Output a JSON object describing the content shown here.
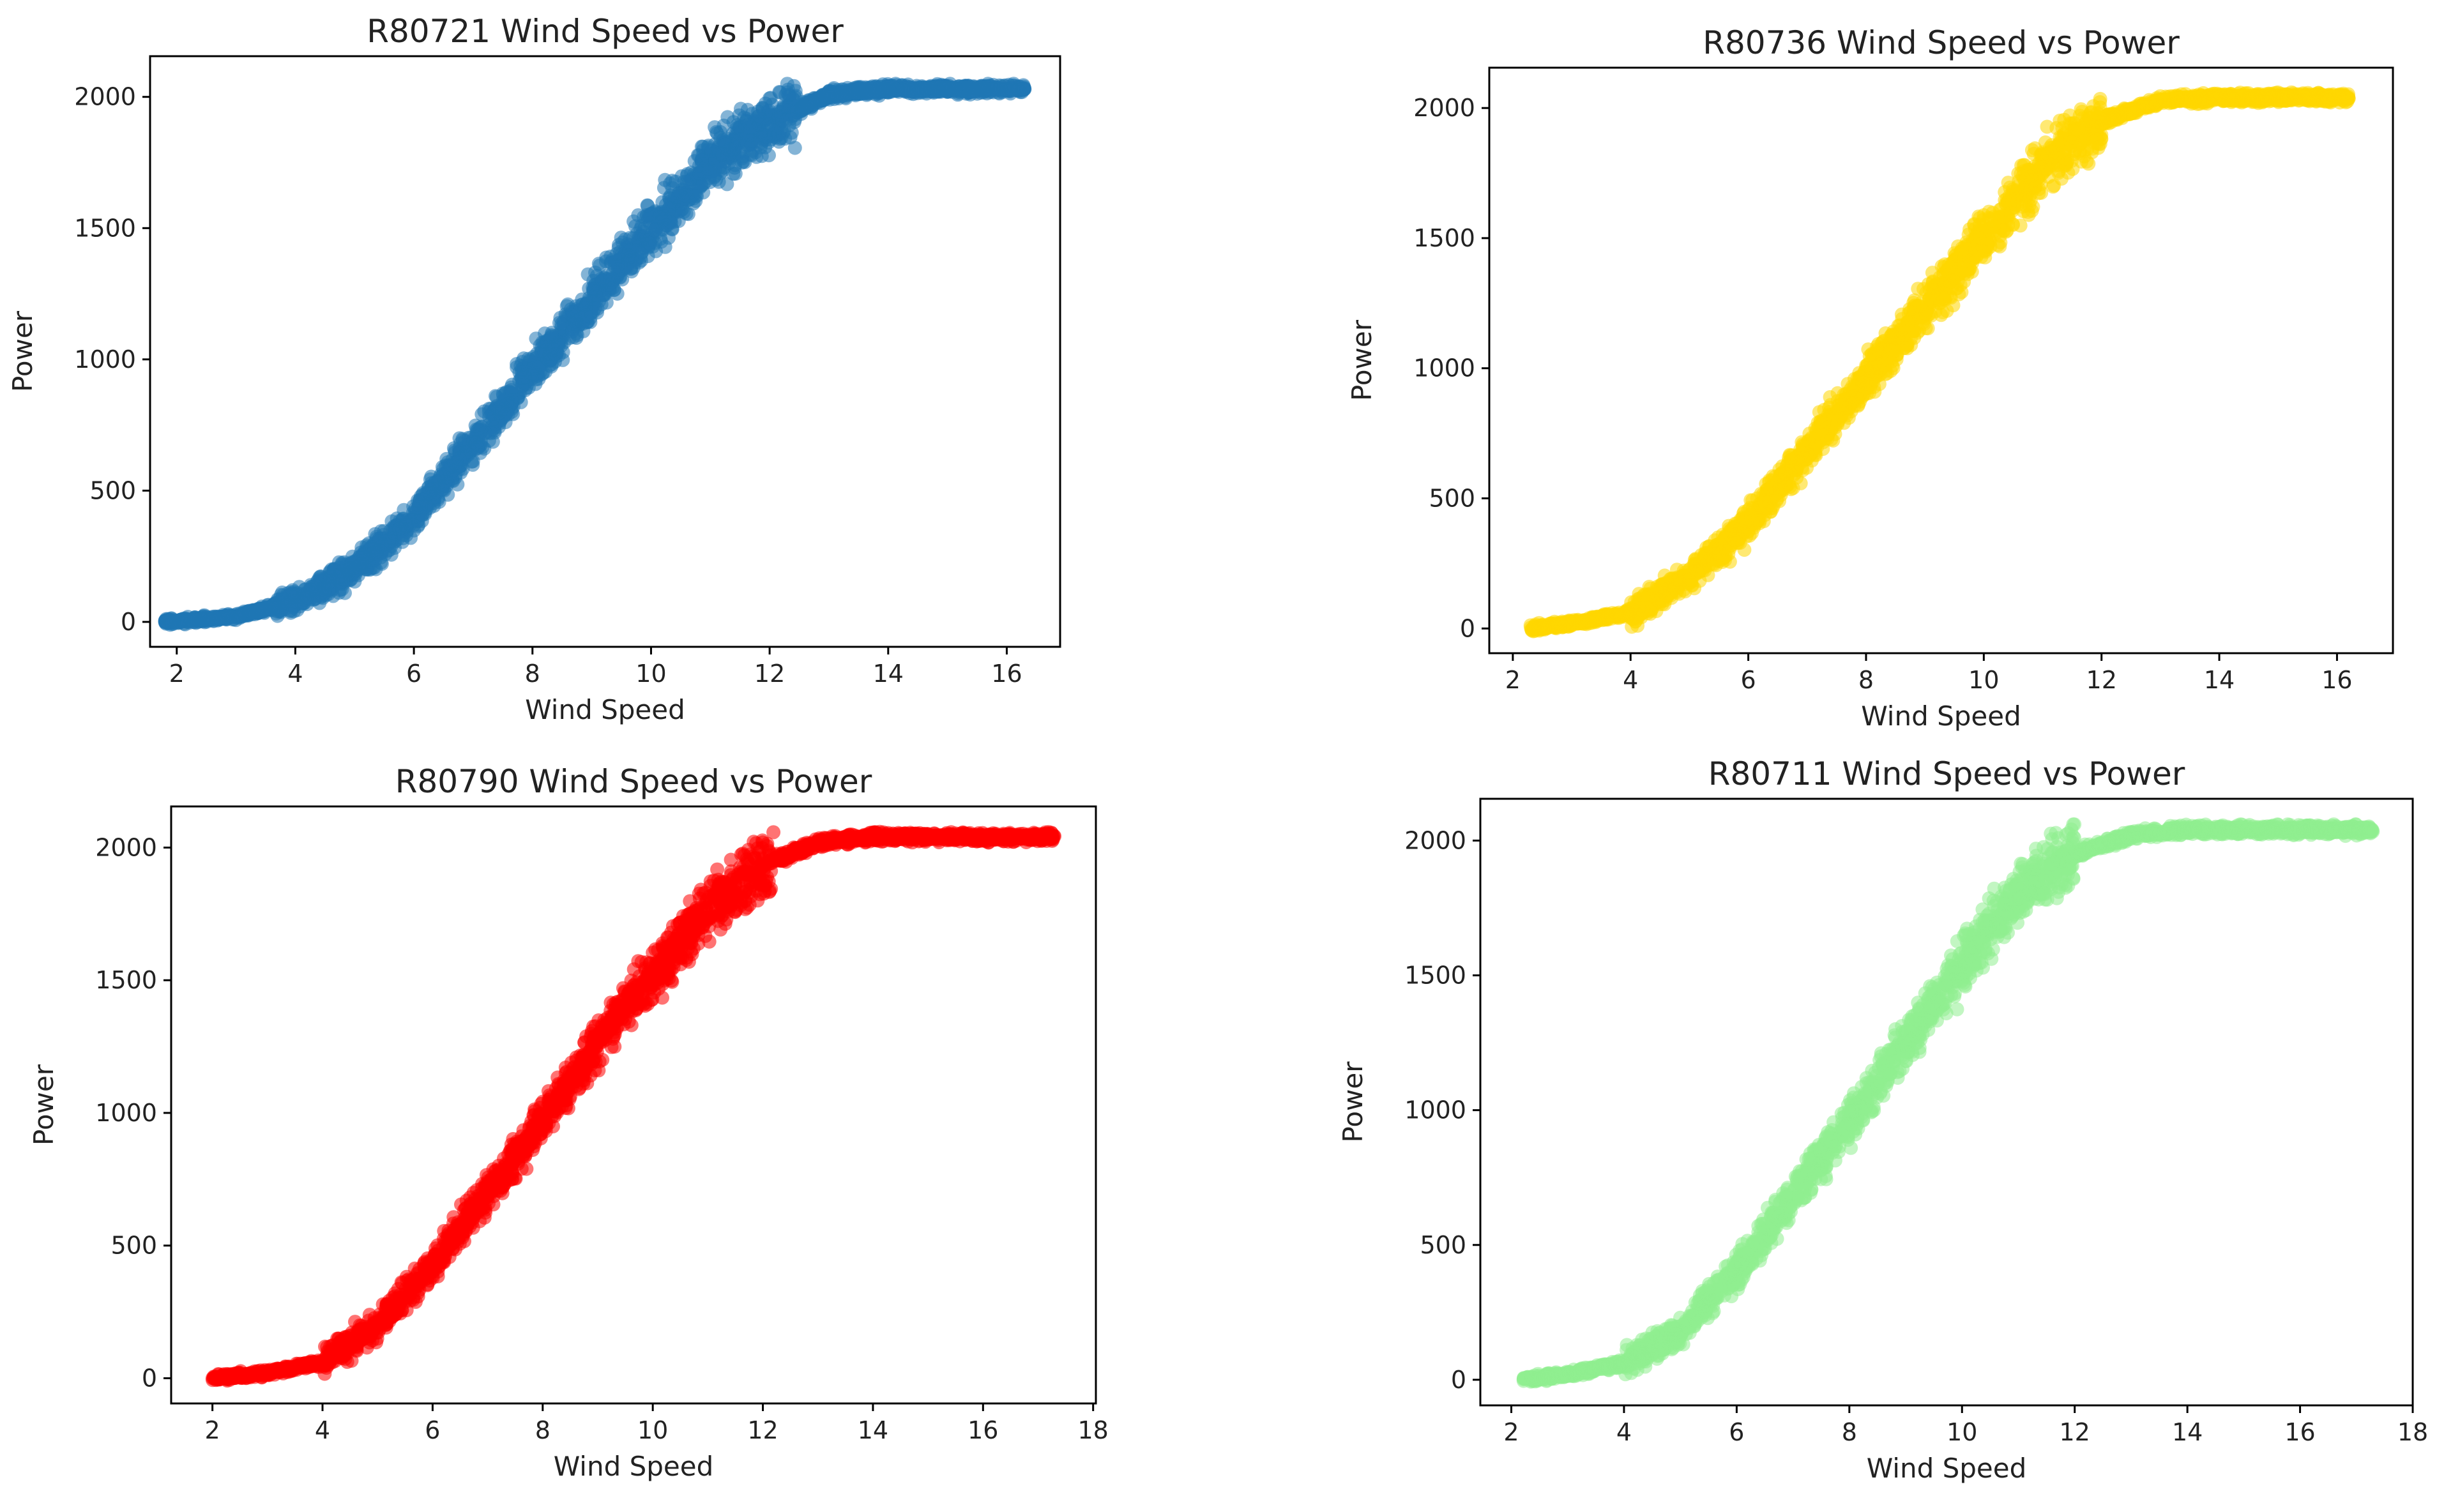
{
  "chart_data": [
    {
      "type": "scatter",
      "title": "R80721 Wind Speed vs Power",
      "xlabel": "Wind Speed",
      "ylabel": "Power",
      "color": "#1f77b4",
      "xlim": [
        1.55,
        16.9
      ],
      "ylim": [
        -95,
        2155
      ],
      "xticks": [
        2,
        4,
        6,
        8,
        10,
        12,
        14,
        16
      ],
      "yticks": [
        0,
        500,
        1000,
        1500,
        2000
      ],
      "wind_range": [
        1.8,
        16.3
      ],
      "power_curve": {
        "x": [
          1.8,
          3,
          4,
          5,
          6,
          7,
          8,
          9,
          10,
          11,
          12,
          13,
          14,
          15,
          16.3
        ],
        "y": [
          0,
          20,
          80,
          200,
          400,
          680,
          960,
          1230,
          1500,
          1750,
          1900,
          2010,
          2030,
          2030,
          2030
        ]
      },
      "power_cap": 2050
    },
    {
      "type": "scatter",
      "title": "R80736 Wind Speed vs Power",
      "xlabel": "Wind Speed",
      "ylabel": "Power",
      "color": "#ffd700",
      "xlim": [
        1.6,
        16.95
      ],
      "ylim": [
        -95,
        2155
      ],
      "xticks": [
        2,
        4,
        6,
        8,
        10,
        12,
        14,
        16
      ],
      "yticks": [
        0,
        500,
        1000,
        1500,
        2000
      ],
      "wind_range": [
        2.3,
        16.2
      ],
      "power_curve": {
        "x": [
          2.3,
          3,
          4,
          5,
          6,
          7,
          8,
          9,
          10,
          11,
          12,
          13,
          14,
          15,
          16.2
        ],
        "y": [
          0,
          20,
          60,
          200,
          400,
          680,
          960,
          1230,
          1500,
          1780,
          1950,
          2030,
          2040,
          2040,
          2040
        ]
      },
      "power_cap": 2060
    },
    {
      "type": "scatter",
      "title": "R80790 Wind Speed vs Power",
      "xlabel": "Wind Speed",
      "ylabel": "Power",
      "color": "#ff0000",
      "xlim": [
        1.25,
        18.05
      ],
      "ylim": [
        -95,
        2155
      ],
      "xticks": [
        2,
        4,
        6,
        8,
        10,
        12,
        14,
        16,
        18
      ],
      "yticks": [
        0,
        500,
        1000,
        1500,
        2000
      ],
      "wind_range": [
        2.0,
        17.3
      ],
      "power_curve": {
        "x": [
          2,
          3,
          4,
          5,
          6,
          7,
          8,
          9,
          10,
          11,
          12,
          13,
          14,
          15,
          16,
          17.3
        ],
        "y": [
          0,
          20,
          60,
          200,
          420,
          700,
          980,
          1260,
          1520,
          1760,
          1930,
          2020,
          2040,
          2040,
          2040,
          2040
        ]
      },
      "power_cap": 2060
    },
    {
      "type": "scatter",
      "title": "R80711 Wind Speed vs Power",
      "xlabel": "Wind Speed",
      "ylabel": "Power",
      "color": "#90ee90",
      "xlim": [
        1.45,
        18.0
      ],
      "ylim": [
        -95,
        2155
      ],
      "xticks": [
        2,
        4,
        6,
        8,
        10,
        12,
        14,
        16,
        18
      ],
      "yticks": [
        0,
        500,
        1000,
        1500,
        2000
      ],
      "wind_range": [
        2.2,
        17.3
      ],
      "power_curve": {
        "x": [
          2.2,
          3,
          4,
          5,
          6,
          7,
          8,
          9,
          10,
          11,
          12,
          13,
          14,
          15,
          16,
          17.3
        ],
        "y": [
          0,
          20,
          60,
          180,
          400,
          680,
          960,
          1240,
          1540,
          1800,
          1950,
          2020,
          2040,
          2040,
          2040,
          2040
        ]
      },
      "power_cap": 2060
    }
  ]
}
